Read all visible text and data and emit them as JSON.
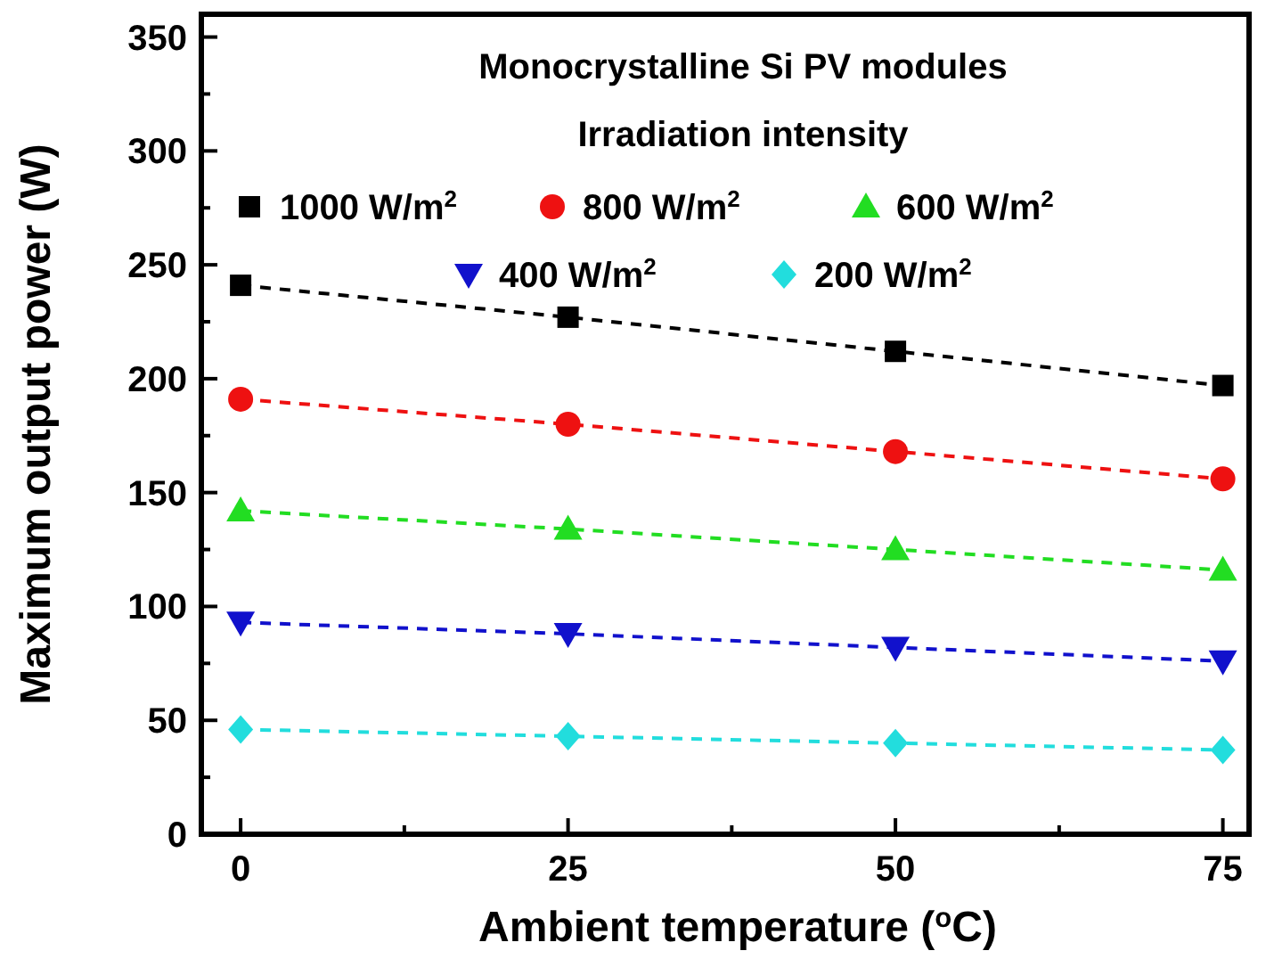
{
  "chart_data": {
    "type": "line",
    "title": "Monocrystalline Si PV modules",
    "legend_title": "Irradiation intensity",
    "xlabel": "Ambient temperature ($^{o}$C)",
    "ylabel": "Maximum output power (W)",
    "x": [
      0,
      25,
      50,
      75
    ],
    "series": [
      {
        "name": "1000 W/m$^{2}$",
        "color": "#000000",
        "marker": "square",
        "values": [
          241,
          227,
          212,
          197
        ]
      },
      {
        "name": "800 W/m$^{2}$",
        "color": "#ee1111",
        "marker": "circle",
        "values": [
          191,
          180,
          168,
          156
        ]
      },
      {
        "name": "600 W/m$^{2}$",
        "color": "#22dd22",
        "marker": "triangle",
        "values": [
          142,
          134,
          125,
          116
        ]
      },
      {
        "name": "400 W/m$^{2}$",
        "color": "#1111cc",
        "marker": "triangle-down",
        "values": [
          93,
          88,
          82,
          76
        ]
      },
      {
        "name": "200 W/m$^{2}$",
        "color": "#22dddd",
        "marker": "diamond",
        "values": [
          46,
          43,
          40,
          37
        ]
      }
    ],
    "xlim": [
      -3,
      77
    ],
    "xticks": [
      0,
      {
        "value": 12.5,
        "label": null
      },
      25,
      {
        "value": 37.5,
        "label": null
      },
      50,
      {
        "value": 62.5,
        "label": null
      },
      75
    ],
    "ylim": [
      0,
      360
    ],
    "yticks": [
      0,
      {
        "value": 25,
        "label": null
      },
      50,
      {
        "value": 75,
        "label": null
      },
      100,
      {
        "value": 125,
        "label": null
      },
      150,
      {
        "value": 175,
        "label": null
      },
      200,
      {
        "value": 225,
        "label": null
      },
      250,
      {
        "value": 275,
        "label": null
      },
      300,
      {
        "value": 325,
        "label": null
      },
      350
    ],
    "line_style": "dashed",
    "legend": "top",
    "grid": false
  }
}
